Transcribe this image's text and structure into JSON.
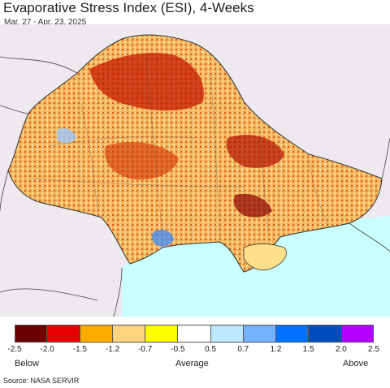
{
  "title": "Evaporative Stress Index (ESI), 4-Weeks",
  "date_range": "Mar. 27 - Apr. 23, 2025",
  "legend": {
    "colors": [
      "#6b0000",
      "#e60000",
      "#ffaa00",
      "#ffd37f",
      "#ffff00",
      "#ffffff",
      "#bee8ff",
      "#73b2ff",
      "#0070ff",
      "#004dc0",
      "#b400ff"
    ],
    "ticks": [
      "-2.5",
      "-2.0",
      "-1.5",
      "-1.2",
      "-0.7",
      "-0.5",
      "0.5",
      "0.7",
      "1.2",
      "1.5",
      "2.0",
      "2.5"
    ],
    "below_label": "Below",
    "average_label": "Average",
    "above_label": "Above"
  },
  "source": "Source: NASA SERVIR"
}
